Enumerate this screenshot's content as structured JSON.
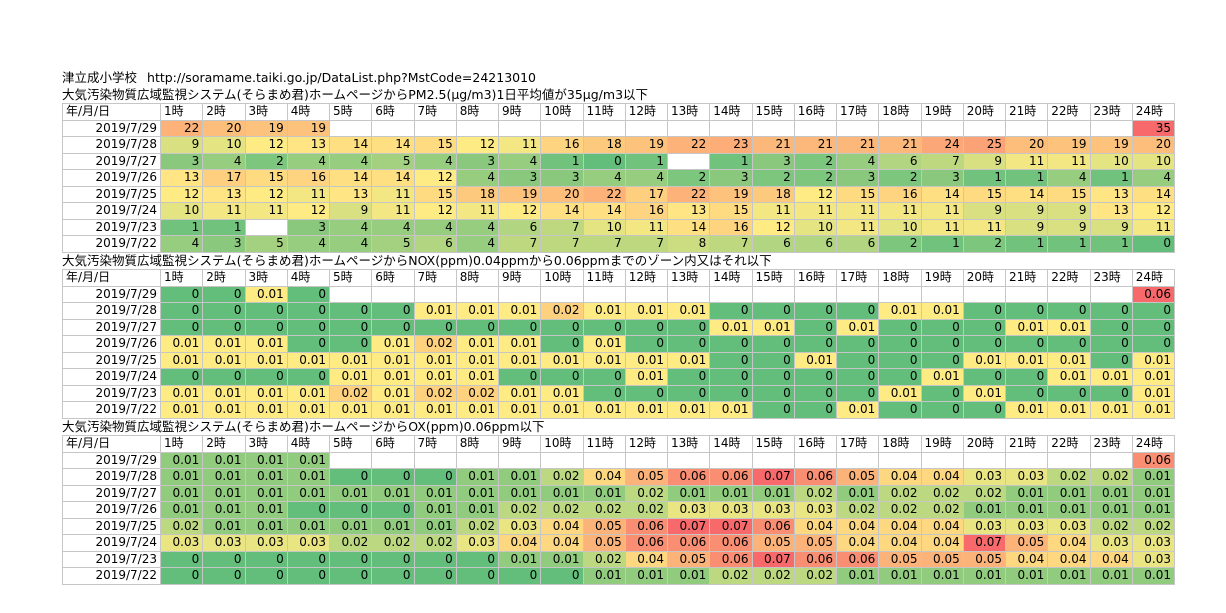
{
  "header": {
    "school": "津立成小学校",
    "url": "http://soramame.taiki.go.jp/DataList.php?MstCode=24213010"
  },
  "hours": [
    "1時",
    "2時",
    "3時",
    "4時",
    "5時",
    "6時",
    "7時",
    "8時",
    "9時",
    "10時",
    "11時",
    "12時",
    "13時",
    "14時",
    "15時",
    "16時",
    "17時",
    "18時",
    "19時",
    "20時",
    "21時",
    "22時",
    "23時",
    "24時"
  ],
  "date_header": "年/月/日",
  "sections": [
    {
      "title": "大気汚染物質広域監視システム(そらまめ君)ホームページからPM2.5(μg/m3)1日平均値が35μg/m3以下",
      "rows": [
        {
          "date": "2019/7/29",
          "values": [
            "22",
            "20",
            "19",
            "19",
            "",
            "",
            "",
            "",
            "",
            "",
            "",
            "",
            "",
            "",
            "",
            "",
            "",
            "",
            "",
            "",
            "",
            "",
            "",
            "35"
          ]
        },
        {
          "date": "2019/7/28",
          "values": [
            "9",
            "10",
            "12",
            "13",
            "14",
            "14",
            "15",
            "12",
            "11",
            "16",
            "18",
            "19",
            "22",
            "23",
            "21",
            "21",
            "21",
            "21",
            "24",
            "25",
            "20",
            "19",
            "19",
            "20"
          ]
        },
        {
          "date": "2019/7/27",
          "values": [
            "3",
            "4",
            "2",
            "4",
            "4",
            "5",
            "4",
            "3",
            "4",
            "1",
            "0",
            "1",
            "",
            "1",
            "3",
            "2",
            "4",
            "6",
            "7",
            "9",
            "11",
            "11",
            "10",
            "10"
          ]
        },
        {
          "date": "2019/7/26",
          "values": [
            "13",
            "17",
            "15",
            "16",
            "14",
            "14",
            "12",
            "4",
            "3",
            "3",
            "4",
            "4",
            "2",
            "3",
            "2",
            "2",
            "3",
            "2",
            "3",
            "1",
            "1",
            "4",
            "1",
            "4"
          ]
        },
        {
          "date": "2019/7/25",
          "values": [
            "12",
            "13",
            "12",
            "11",
            "13",
            "11",
            "15",
            "18",
            "19",
            "20",
            "22",
            "17",
            "22",
            "19",
            "18",
            "12",
            "15",
            "16",
            "14",
            "15",
            "14",
            "15",
            "13",
            "14"
          ]
        },
        {
          "date": "2019/7/24",
          "values": [
            "10",
            "11",
            "11",
            "12",
            "9",
            "11",
            "12",
            "11",
            "12",
            "14",
            "14",
            "16",
            "13",
            "15",
            "11",
            "11",
            "11",
            "11",
            "11",
            "9",
            "9",
            "9",
            "13",
            "12"
          ]
        },
        {
          "date": "2019/7/23",
          "values": [
            "1",
            "1",
            "",
            "3",
            "4",
            "4",
            "4",
            "4",
            "6",
            "7",
            "10",
            "11",
            "14",
            "16",
            "12",
            "10",
            "11",
            "10",
            "11",
            "11",
            "9",
            "9",
            "9",
            "11"
          ]
        },
        {
          "date": "2019/7/22",
          "values": [
            "4",
            "3",
            "5",
            "4",
            "4",
            "5",
            "6",
            "4",
            "7",
            "7",
            "7",
            "7",
            "8",
            "7",
            "6",
            "6",
            "6",
            "2",
            "1",
            "2",
            "1",
            "1",
            "1",
            "0"
          ]
        }
      ]
    },
    {
      "title": "大気汚染物質広域監視システム(そらまめ君)ホームページからNOX(ppm)0.04ppmから0.06ppmまでのゾーン内又はそれ以下",
      "rows": [
        {
          "date": "2019/7/29",
          "values": [
            "0",
            "0",
            "0.01",
            "0",
            "",
            "",
            "",
            "",
            "",
            "",
            "",
            "",
            "",
            "",
            "",
            "",
            "",
            "",
            "",
            "",
            "",
            "",
            "",
            "0.06"
          ]
        },
        {
          "date": "2019/7/28",
          "values": [
            "0",
            "0",
            "0",
            "0",
            "0",
            "0",
            "0.01",
            "0.01",
            "0.01",
            "0.02",
            "0.01",
            "0.01",
            "0.01",
            "0",
            "0",
            "0",
            "0",
            "0.01",
            "0.01",
            "0",
            "0",
            "0",
            "0",
            "0"
          ]
        },
        {
          "date": "2019/7/27",
          "values": [
            "0",
            "0",
            "0",
            "0",
            "0",
            "0",
            "0",
            "0",
            "0",
            "0",
            "0",
            "0",
            "0",
            "0.01",
            "0.01",
            "0",
            "0.01",
            "0",
            "0",
            "0",
            "0.01",
            "0.01",
            "0",
            "0"
          ]
        },
        {
          "date": "2019/7/26",
          "values": [
            "0.01",
            "0.01",
            "0.01",
            "0",
            "0",
            "0.01",
            "0.02",
            "0.01",
            "0.01",
            "0",
            "0.01",
            "0",
            "0",
            "0",
            "0",
            "0",
            "0",
            "0",
            "0",
            "0",
            "0",
            "0",
            "0",
            "0"
          ]
        },
        {
          "date": "2019/7/25",
          "values": [
            "0.01",
            "0.01",
            "0.01",
            "0.01",
            "0.01",
            "0.01",
            "0.01",
            "0.01",
            "0.01",
            "0.01",
            "0.01",
            "0.01",
            "0.01",
            "0",
            "0",
            "0.01",
            "0",
            "0",
            "0",
            "0.01",
            "0.01",
            "0.01",
            "0",
            "0.01"
          ]
        },
        {
          "date": "2019/7/24",
          "values": [
            "0",
            "0",
            "0",
            "0",
            "0.01",
            "0.01",
            "0.01",
            "0.01",
            "0",
            "0",
            "0",
            "0.01",
            "0",
            "0",
            "0",
            "0",
            "0",
            "0",
            "0.01",
            "0",
            "0",
            "0.01",
            "0.01",
            "0.01"
          ]
        },
        {
          "date": "2019/7/23",
          "values": [
            "0.01",
            "0.01",
            "0.01",
            "0.01",
            "0.02",
            "0.01",
            "0.02",
            "0.02",
            "0.01",
            "0.01",
            "0",
            "0",
            "0",
            "0",
            "0",
            "0",
            "0",
            "0.01",
            "0",
            "0.01",
            "0",
            "0",
            "0",
            "0.01"
          ]
        },
        {
          "date": "2019/7/22",
          "values": [
            "0.01",
            "0.01",
            "0.01",
            "0.01",
            "0.01",
            "0.01",
            "0.01",
            "0.01",
            "0.01",
            "0.01",
            "0.01",
            "0.01",
            "0.01",
            "0.01",
            "0",
            "0",
            "0.01",
            "0",
            "0",
            "0",
            "0.01",
            "0.01",
            "0.01",
            "0.01"
          ]
        }
      ]
    },
    {
      "title": "大気汚染物質広域監視システム(そらまめ君)ホームページからOX(ppm)0.06ppm以下",
      "rows": [
        {
          "date": "2019/7/29",
          "values": [
            "0.01",
            "0.01",
            "0.01",
            "0.01",
            "",
            "",
            "",
            "",
            "",
            "",
            "",
            "",
            "",
            "",
            "",
            "",
            "",
            "",
            "",
            "",
            "",
            "",
            "",
            "0.06"
          ]
        },
        {
          "date": "2019/7/28",
          "values": [
            "0.01",
            "0.01",
            "0.01",
            "0.01",
            "0",
            "0",
            "0",
            "0.01",
            "0.01",
            "0.02",
            "0.04",
            "0.05",
            "0.06",
            "0.06",
            "0.07",
            "0.06",
            "0.05",
            "0.04",
            "0.04",
            "0.03",
            "0.03",
            "0.02",
            "0.02",
            "0.01"
          ]
        },
        {
          "date": "2019/7/27",
          "values": [
            "0.01",
            "0.01",
            "0.01",
            "0.01",
            "0.01",
            "0.01",
            "0.01",
            "0.01",
            "0.01",
            "0.01",
            "0.01",
            "0.02",
            "0.01",
            "0.01",
            "0.01",
            "0.02",
            "0.01",
            "0.02",
            "0.02",
            "0.02",
            "0.01",
            "0.01",
            "0.01",
            "0.01"
          ]
        },
        {
          "date": "2019/7/26",
          "values": [
            "0.01",
            "0.01",
            "0.01",
            "0",
            "0",
            "0",
            "0.01",
            "0.01",
            "0.02",
            "0.02",
            "0.02",
            "0.02",
            "0.03",
            "0.03",
            "0.03",
            "0.03",
            "0.02",
            "0.02",
            "0.02",
            "0.01",
            "0.01",
            "0.01",
            "0.01",
            "0.01"
          ]
        },
        {
          "date": "2019/7/25",
          "values": [
            "0.02",
            "0.01",
            "0.01",
            "0.01",
            "0.01",
            "0.01",
            "0.01",
            "0.02",
            "0.03",
            "0.04",
            "0.05",
            "0.06",
            "0.07",
            "0.07",
            "0.06",
            "0.04",
            "0.04",
            "0.04",
            "0.04",
            "0.03",
            "0.03",
            "0.03",
            "0.02",
            "0.02"
          ]
        },
        {
          "date": "2019/7/24",
          "values": [
            "0.03",
            "0.03",
            "0.03",
            "0.03",
            "0.02",
            "0.02",
            "0.02",
            "0.03",
            "0.04",
            "0.04",
            "0.05",
            "0.06",
            "0.06",
            "0.06",
            "0.05",
            "0.05",
            "0.04",
            "0.04",
            "0.04",
            "0.07",
            "0.05",
            "0.04",
            "0.03",
            "0.03"
          ]
        },
        {
          "date": "2019/7/23",
          "values": [
            "0",
            "0",
            "0",
            "0",
            "0",
            "0",
            "0",
            "0",
            "0.01",
            "0.01",
            "0.02",
            "0.04",
            "0.05",
            "0.06",
            "0.07",
            "0.06",
            "0.06",
            "0.05",
            "0.05",
            "0.05",
            "0.04",
            "0.04",
            "0.04",
            "0.03"
          ]
        },
        {
          "date": "2019/7/22",
          "values": [
            "0",
            "0",
            "0",
            "0",
            "0",
            "0",
            "0",
            "0",
            "0",
            "0",
            "0.01",
            "0.01",
            "0.01",
            "0.02",
            "0.02",
            "0.02",
            "0.01",
            "0.01",
            "0.01",
            "0.01",
            "0.01",
            "0.01",
            "0.01",
            "0.01"
          ]
        }
      ]
    }
  ]
}
